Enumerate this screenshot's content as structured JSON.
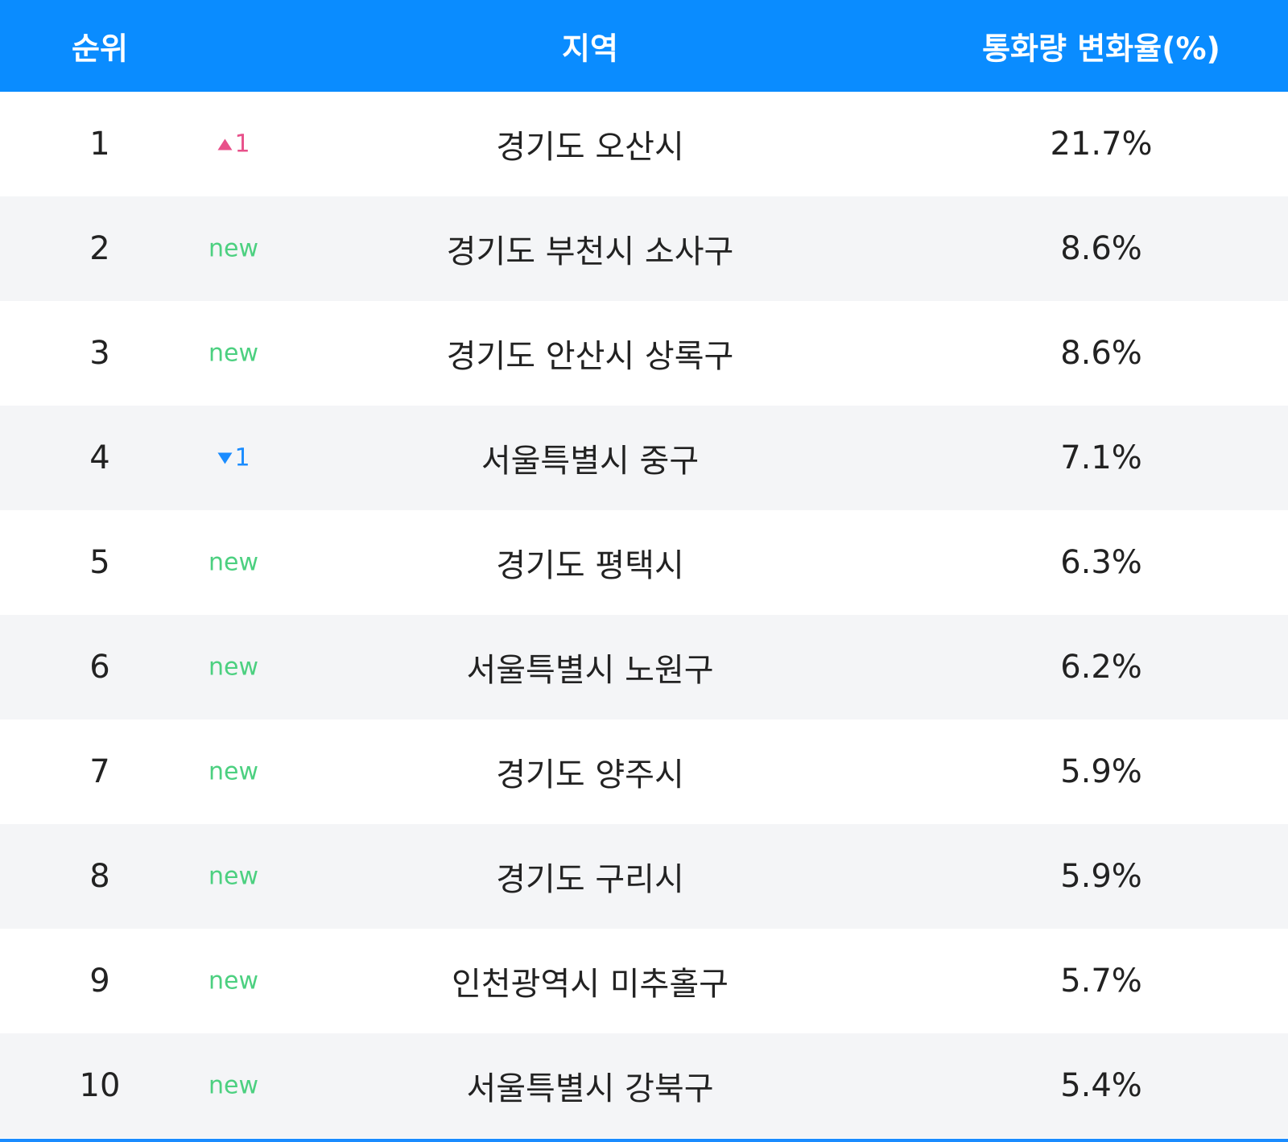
{
  "table": {
    "header": [
      "순위",
      "지역",
      "통화량 변화율(%)"
    ],
    "rows": [
      {
        "rank": "1",
        "change": {
          "direction": "up",
          "amount": "1"
        },
        "region": "경기도 오산시",
        "rate": "21.7%"
      },
      {
        "rank": "2",
        "change": "new",
        "region": "경기도 부천시 소사구",
        "rate": "8.6%"
      },
      {
        "rank": "3",
        "change": "new",
        "region": "경기도 안산시 상록구",
        "rate": "8.6%"
      },
      {
        "rank": "4",
        "change": {
          "direction": "down",
          "amount": "1"
        },
        "region": "서울특별시 중구",
        "rate": "7.1%"
      },
      {
        "rank": "5",
        "change": "new",
        "region": "경기도 평택시",
        "rate": "6.3%"
      },
      {
        "rank": "6",
        "change": "new",
        "region": "서울특별시 노원구",
        "rate": "6.2%"
      },
      {
        "rank": "7",
        "change": "new",
        "region": "경기도 양주시",
        "rate": "5.9%"
      },
      {
        "rank": "8",
        "change": "new",
        "region": "경기도 구리시",
        "rate": "5.9%"
      },
      {
        "rank": "9",
        "change": "new",
        "region": "인천광역시 미추홀구",
        "rate": "5.7%"
      },
      {
        "rank": "10",
        "change": "new",
        "region": "서울특별시 강북구",
        "rate": "5.4%"
      }
    ]
  }
}
